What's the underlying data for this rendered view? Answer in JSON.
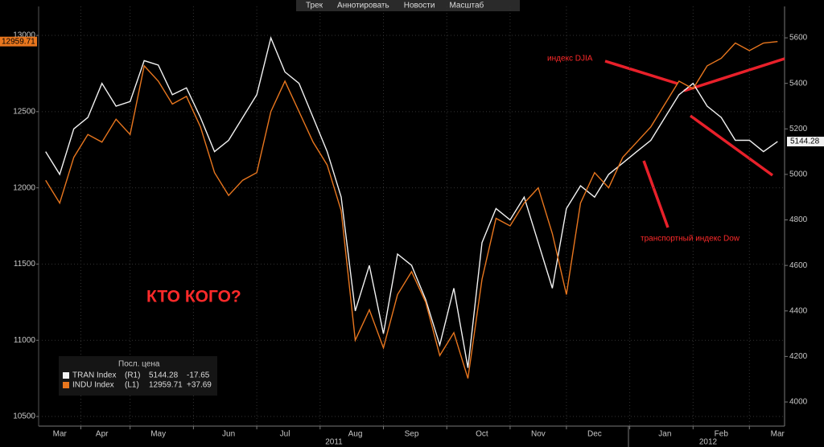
{
  "chart_data": {
    "type": "line",
    "toolbar": [
      "Трек",
      "Аннотировать",
      "Новости",
      "Масштаб"
    ],
    "categories": [
      null,
      "Mar",
      null,
      null,
      "Apr",
      null,
      null,
      null,
      "May",
      null,
      null,
      null,
      null,
      "Jun",
      null,
      null,
      null,
      "Jul",
      null,
      null,
      null,
      null,
      "Aug",
      null,
      null,
      null,
      "Sep",
      null,
      null,
      null,
      null,
      "Oct",
      null,
      null,
      null,
      "Nov",
      null,
      null,
      null,
      "Dec",
      null,
      null,
      null,
      null,
      "Jan",
      null,
      null,
      null,
      "Feb",
      null,
      null,
      null,
      "Mar"
    ],
    "year_labels": [
      "2011",
      "2012"
    ],
    "series": [
      {
        "name": "TRAN Index",
        "axis_label": "(R1)",
        "change": "-17.65",
        "axis": "y2",
        "color": "#f2f2f2",
        "values": [
          5100,
          5000,
          5200,
          5250,
          5400,
          5300,
          5320,
          5500,
          5480,
          5350,
          5380,
          5250,
          5100,
          5150,
          5250,
          5350,
          5600,
          5450,
          5400,
          5250,
          5100,
          4900,
          4400,
          4600,
          4300,
          4650,
          4600,
          4450,
          4250,
          4500,
          4150,
          4700,
          4850,
          4800,
          4900,
          4700,
          4500,
          4850,
          4950,
          4900,
          5000,
          5050,
          5100,
          5150,
          5250,
          5350,
          5400,
          5300,
          5250,
          5150,
          5150,
          5100,
          5144.28
        ]
      },
      {
        "name": "INDU Index",
        "axis_label": "(L1)",
        "change": "+37.69",
        "color": "#e8761e",
        "values": [
          12050,
          11900,
          12200,
          12350,
          12300,
          12450,
          12350,
          12800,
          12700,
          12550,
          12600,
          12400,
          12100,
          11950,
          12050,
          12100,
          12500,
          12700,
          12500,
          12300,
          12150,
          11850,
          11000,
          11200,
          10950,
          11300,
          11450,
          11250,
          10900,
          11050,
          10750,
          11400,
          11800,
          11750,
          11900,
          12000,
          11700,
          11300,
          11900,
          12100,
          12000,
          12200,
          12300,
          12400,
          12550,
          12700,
          12650,
          12800,
          12850,
          12950,
          12900,
          12950,
          12959.71
        ]
      }
    ],
    "legend_title": "Посл. цена",
    "annotations": [
      "индекс DJIA",
      "транспортный индекс Dow",
      "КТО КОГО?"
    ],
    "ylim": [
      10437,
      13190
    ],
    "yticks": [
      10500,
      11000,
      11500,
      12000,
      12500,
      13000
    ],
    "y2lim": [
      3894,
      5738
    ],
    "y2ticks": [
      4000,
      4200,
      4400,
      4600,
      4800,
      5000,
      5200,
      5400,
      5600
    ],
    "grid": true
  }
}
